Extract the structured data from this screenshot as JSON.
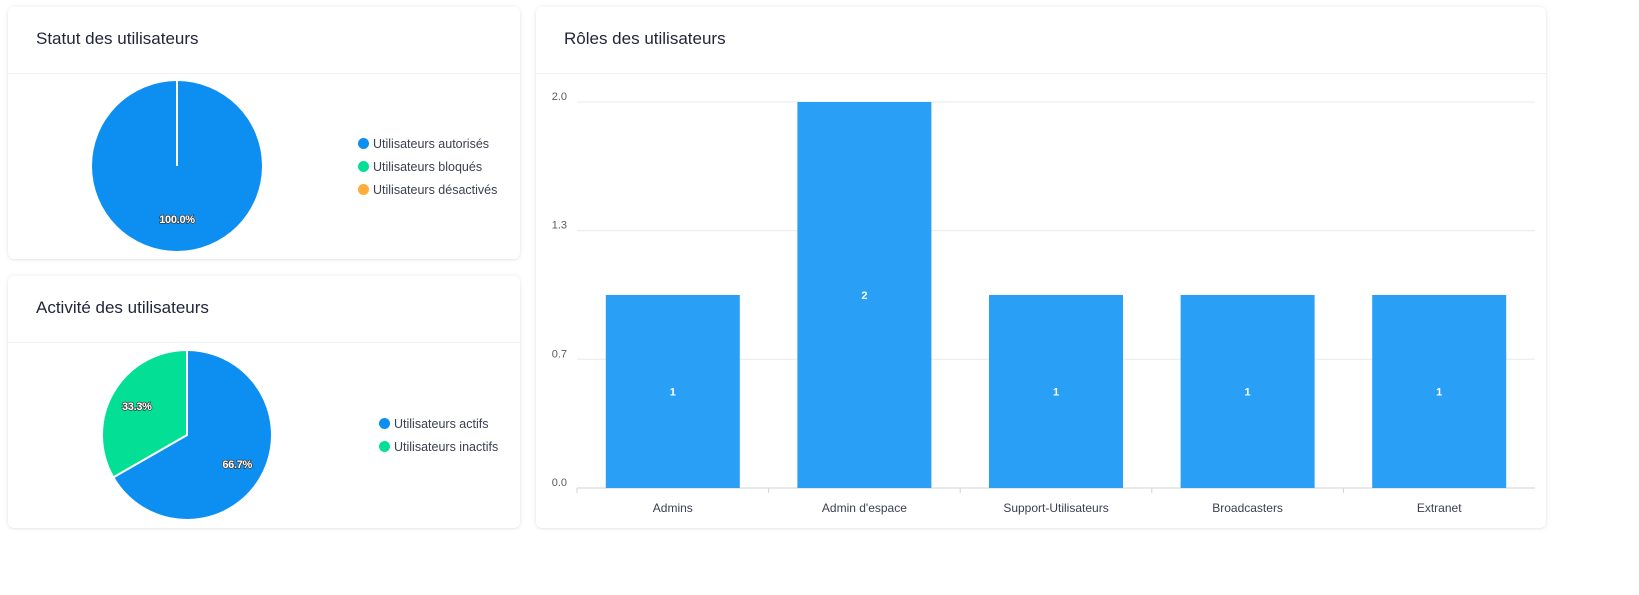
{
  "colors": {
    "blue": "#0d8ff2",
    "green": "#03e095",
    "orange": "#feac3a",
    "bar": "#29a0f5",
    "grid": "#e6e8ec",
    "axis_text": "#555a66"
  },
  "status_card": {
    "title": "Statut des utilisateurs",
    "legend": [
      {
        "label": "Utilisateurs autorisés",
        "color": "#0d8ff2"
      },
      {
        "label": "Utilisateurs bloqués",
        "color": "#03e095"
      },
      {
        "label": "Utilisateurs désactivés",
        "color": "#feac3a"
      }
    ]
  },
  "activity_card": {
    "title": "Activité des utilisateurs",
    "legend": [
      {
        "label": "Utilisateurs actifs",
        "color": "#0d8ff2"
      },
      {
        "label": "Utilisateurs inactifs",
        "color": "#03e095"
      }
    ]
  },
  "roles_card": {
    "title": "Rôles des utilisateurs"
  },
  "chart_data": [
    {
      "type": "pie",
      "title": "Statut des utilisateurs",
      "categories": [
        "Utilisateurs autorisés",
        "Utilisateurs bloqués",
        "Utilisateurs désactivés"
      ],
      "values": [
        100,
        0,
        0
      ],
      "labels": [
        "100.0%",
        "",
        ""
      ],
      "colors": [
        "#0d8ff2",
        "#03e095",
        "#feac3a"
      ],
      "legend": "right"
    },
    {
      "type": "pie",
      "title": "Activité des utilisateurs",
      "categories": [
        "Utilisateurs actifs",
        "Utilisateurs inactifs"
      ],
      "values": [
        66.7,
        33.3
      ],
      "labels": [
        "66.7%",
        "33.3%"
      ],
      "colors": [
        "#0d8ff2",
        "#03e095"
      ],
      "legend": "right"
    },
    {
      "type": "bar",
      "title": "Rôles des utilisateurs",
      "categories": [
        "Admins",
        "Admin d'espace",
        "Support-Utilisateurs",
        "Broadcasters",
        "Extranet"
      ],
      "values": [
        1,
        2,
        1,
        1,
        1
      ],
      "data_labels": [
        "1",
        "2",
        "1",
        "1",
        "1"
      ],
      "ylim": [
        0,
        2
      ],
      "yticks": [
        "0.0",
        "0.7",
        "1.3",
        "2.0"
      ],
      "ytick_values": [
        0,
        0.667,
        1.333,
        2
      ],
      "grid": true,
      "color": "#29a0f5"
    }
  ]
}
